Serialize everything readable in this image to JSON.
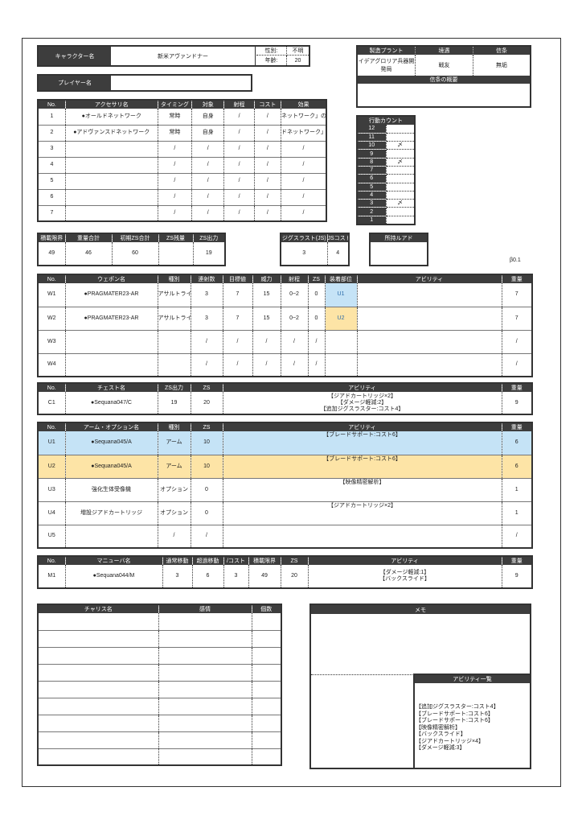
{
  "colors": {
    "U1": "#c5e3f6",
    "U2": "#fde4a6",
    "header": "#3d3d3d"
  },
  "character": {
    "label": "キャラクター名",
    "name": "新米アヴァンドナー",
    "gender_label": "性別:",
    "gender": "不明",
    "age_label": "年齢:",
    "age": "20"
  },
  "player": {
    "label": "プレイヤー名",
    "name": ""
  },
  "origin": {
    "headers": [
      "製造プラント",
      "境遇",
      "信条"
    ],
    "values": [
      "イデアグロリア兵器開発局",
      "戦友",
      "無垢"
    ],
    "summary_label": "信条の概要",
    "summary": ""
  },
  "action_count": {
    "title": "行動カウント",
    "rows": [
      [
        "12",
        ""
      ],
      [
        "11",
        ""
      ],
      [
        "10",
        "〆"
      ],
      [
        "9",
        ""
      ],
      [
        "8",
        "〆"
      ],
      [
        "7",
        ""
      ],
      [
        "6",
        ""
      ],
      [
        "5",
        ""
      ],
      [
        "4",
        ""
      ],
      [
        "3",
        "〆"
      ],
      [
        "2",
        ""
      ],
      [
        "1",
        ""
      ]
    ]
  },
  "accessories": {
    "headers": [
      "No.",
      "アクセサリ名",
      "タイミング",
      "対象",
      "射程",
      "コスト",
      "効果"
    ],
    "rows": [
      [
        "1",
        "●オールドネットワーク",
        "常時",
        "自身",
        "/",
        "/",
        "ネットワーク」の調"
      ],
      [
        "2",
        "●アドヴァンスドネットワーク",
        "常時",
        "自身",
        "/",
        "/",
        "ドネットワーク」の"
      ],
      [
        "3",
        "",
        "/",
        "/",
        "/",
        "/",
        "/"
      ],
      [
        "4",
        "",
        "/",
        "/",
        "/",
        "/",
        "/"
      ],
      [
        "5",
        "",
        "/",
        "/",
        "/",
        "/",
        "/"
      ],
      [
        "6",
        "",
        "/",
        "/",
        "/",
        "/",
        "/"
      ],
      [
        "7",
        "",
        "/",
        "/",
        "/",
        "/",
        "/"
      ]
    ]
  },
  "stats": {
    "headers": [
      "積載限界",
      "重量合計",
      "初期ZS合計",
      "ZS残量",
      "ZS出力"
    ],
    "rows": [
      [
        "49",
        "46",
        "60",
        "",
        "19"
      ]
    ]
  },
  "jigsaw": {
    "headers": [
      "ジグスラスト(JS)",
      "JSコスト"
    ],
    "rows": [
      [
        "3",
        "4"
      ]
    ]
  },
  "luad": {
    "headers": [
      "所持ルアド"
    ],
    "rows": [
      [
        ""
      ]
    ]
  },
  "version": "β0.1",
  "weapons": {
    "headers": [
      "No.",
      "ウェポン名",
      "種別",
      "連射数",
      "目標値",
      "威力",
      "射程",
      "ZS",
      "装着部位",
      "アビリティ",
      "重量"
    ],
    "rows": [
      [
        "W1",
        "●PRAGMATER23-AR",
        "アサルトライフ",
        "3",
        "7",
        "15",
        "0~2",
        "0",
        "U1",
        "",
        "7"
      ],
      [
        "W2",
        "●PRAGMATER23-AR",
        "アサルトライフ",
        "3",
        "7",
        "15",
        "0~2",
        "0",
        "U2",
        "",
        "7"
      ],
      [
        "W3",
        "",
        "",
        "/",
        "/",
        "/",
        "/",
        "/",
        "",
        "",
        "/"
      ],
      [
        "W4",
        "",
        "",
        "/",
        "/",
        "/",
        "/",
        "/",
        "",
        "",
        "/"
      ]
    ]
  },
  "chest": {
    "headers": [
      "No.",
      "チェスト名",
      "ZS出力",
      "ZS",
      "アビリティ",
      "重量"
    ],
    "rows": [
      [
        "C1",
        "●Sequana047/C",
        "19",
        "20",
        "【ジアドカートリッジ×2】\n【ダメージ軽減:2】\n【追加ジグスラスター:コスト4】",
        "9"
      ]
    ]
  },
  "arms": {
    "headers": [
      "No.",
      "アーム・オプション名",
      "種別",
      "ZS",
      "アビリティ",
      "重量"
    ],
    "rows": [
      [
        "U1",
        "●Sequana045/A",
        "アーム",
        "10",
        "【ブレードサポート:コスト6】",
        "6"
      ],
      [
        "U2",
        "●Sequana045/A",
        "アーム",
        "10",
        "【ブレードサポート:コスト6】",
        "6"
      ],
      [
        "U3",
        "強化生体受像機",
        "オプション",
        "0",
        "【映像精密解析】",
        "1"
      ],
      [
        "U4",
        "増設ジアドカートリッジ",
        "オプション",
        "0",
        "【ジアドカートリッジ×2】",
        "1"
      ],
      [
        "U5",
        "",
        "/",
        "/",
        "",
        "/"
      ]
    ]
  },
  "maneuver": {
    "headers": [
      "No.",
      "マニューバ名",
      "通常移動",
      "超過移動",
      "/コスト",
      "積載限界",
      "ZS",
      "アビリティ",
      "重量"
    ],
    "rows": [
      [
        "M1",
        "●Sequana044/M",
        "3",
        "6",
        "3",
        "49",
        "20",
        "【ダメージ軽減:1】\n【バックスライド】",
        "9"
      ]
    ]
  },
  "charis": {
    "headers": [
      "チャリス名",
      "感情",
      "個数"
    ],
    "rows": [
      [
        "",
        "",
        ""
      ],
      [
        "",
        "",
        ""
      ],
      [
        "",
        "",
        ""
      ],
      [
        "",
        "",
        ""
      ],
      [
        "",
        "",
        ""
      ],
      [
        "",
        "",
        ""
      ],
      [
        "",
        "",
        ""
      ],
      [
        "",
        "",
        ""
      ],
      [
        "",
        "",
        ""
      ]
    ]
  },
  "memo": {
    "title": "メモ",
    "body": ""
  },
  "ability_list": {
    "title": "アビリティ一覧",
    "text": "【追加ジグスラスター:コスト4】\n【ブレードサポート:コスト6】\n【ブレードサポート:コスト6】\n【映像精密解析】\n【バックスライド】\n【ジアドカートリッジ×4】\n【ダメージ軽減:3】"
  }
}
